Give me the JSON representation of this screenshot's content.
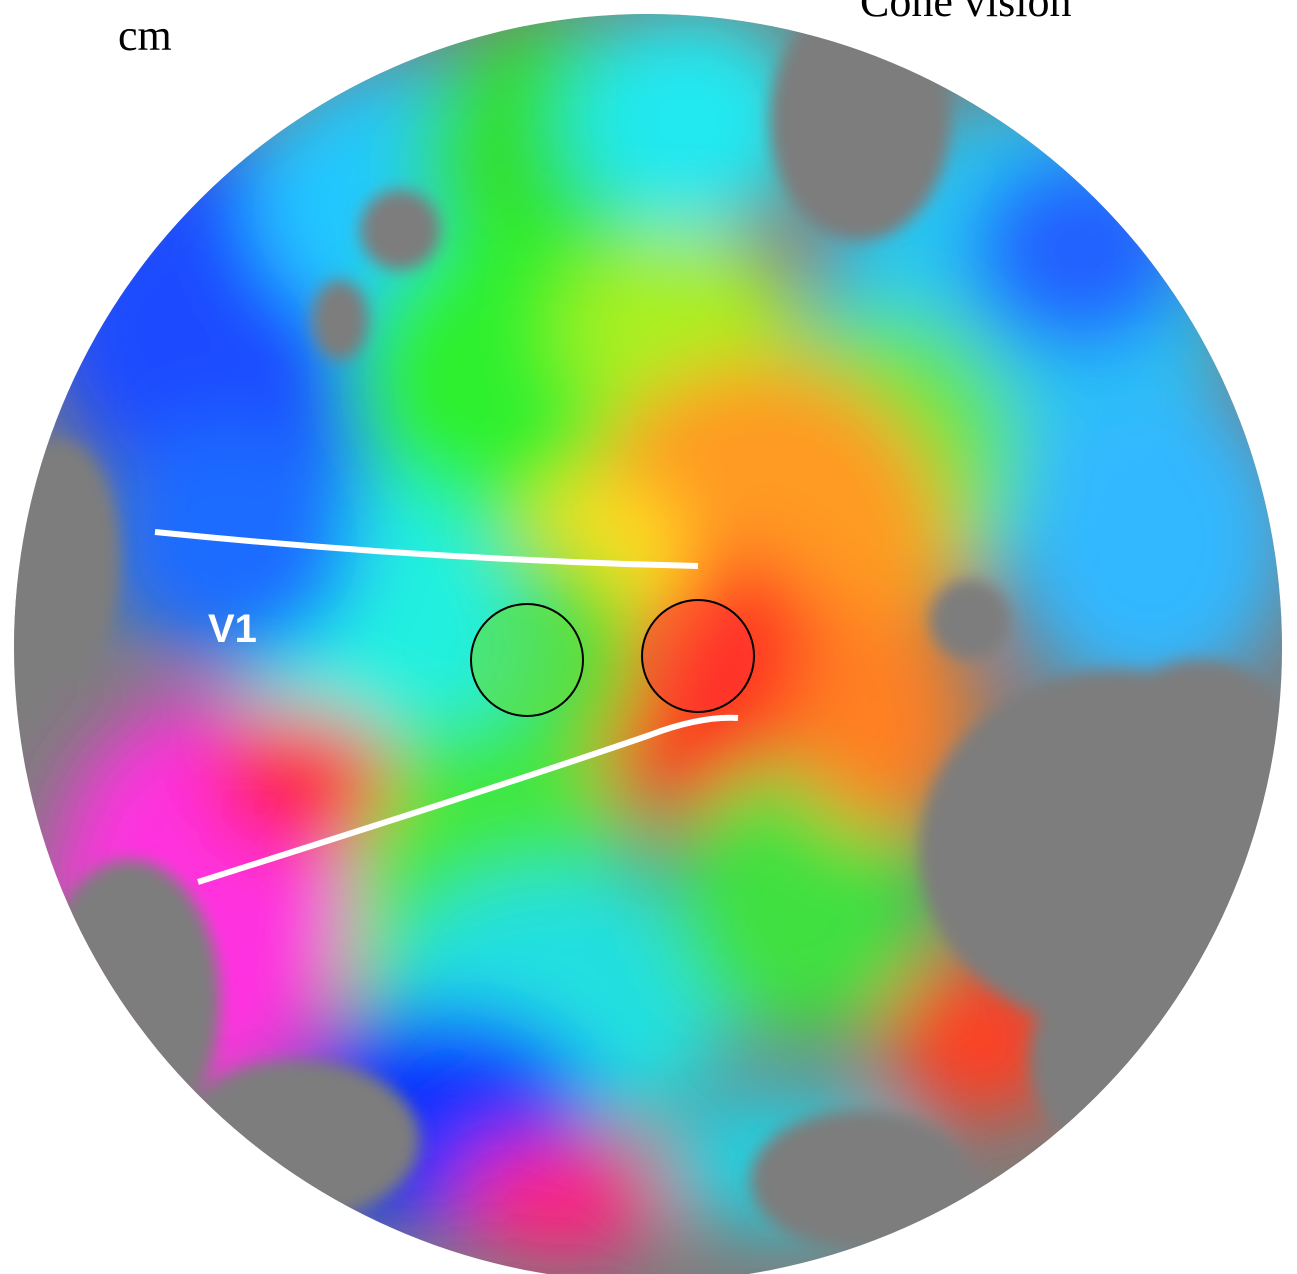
{
  "labels": {
    "unit": "cm",
    "title": "Cone vision",
    "area": "V1"
  }
}
